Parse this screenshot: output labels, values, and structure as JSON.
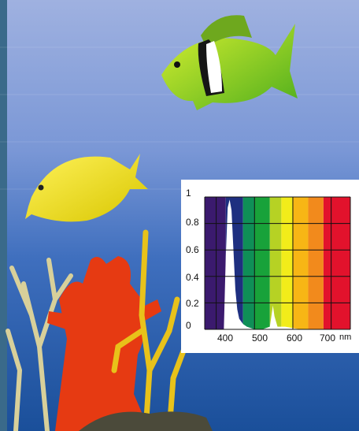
{
  "spectrum_chart": {
    "y_ticks": [
      "1",
      "0.8",
      "0.6",
      "0.4",
      "0.2",
      "0"
    ],
    "x_ticks": [
      "400",
      "500",
      "600",
      "700"
    ],
    "x_unit": "nm",
    "ylim": [
      0,
      1
    ],
    "xlim": [
      370,
      750
    ],
    "spectrum": {
      "x": [
        420,
        425,
        430,
        435,
        440,
        445,
        450,
        455,
        460,
        470,
        480,
        500,
        520,
        540,
        545,
        548,
        552,
        560,
        580,
        600,
        620,
        700
      ],
      "y": [
        0,
        0.55,
        0.92,
        0.98,
        0.9,
        0.6,
        0.3,
        0.15,
        0.08,
        0.04,
        0.02,
        0.0,
        0.0,
        0.02,
        0.12,
        0.18,
        0.1,
        0.02,
        0.02,
        0.01,
        0.0,
        0.0
      ]
    },
    "color_bands": [
      {
        "from": 370,
        "to": 425,
        "color": "#3b1a6e"
      },
      {
        "from": 425,
        "to": 470,
        "color": "#1e2f80"
      },
      {
        "from": 470,
        "to": 500,
        "color": "#0f8f57"
      },
      {
        "from": 500,
        "to": 540,
        "color": "#18a23a"
      },
      {
        "from": 540,
        "to": 570,
        "color": "#b6d224"
      },
      {
        "from": 570,
        "to": 600,
        "color": "#f2ec1a"
      },
      {
        "from": 600,
        "to": 640,
        "color": "#f7b615"
      },
      {
        "from": 640,
        "to": 680,
        "color": "#f28a1c"
      },
      {
        "from": 680,
        "to": 750,
        "color": "#e2122c"
      }
    ]
  }
}
